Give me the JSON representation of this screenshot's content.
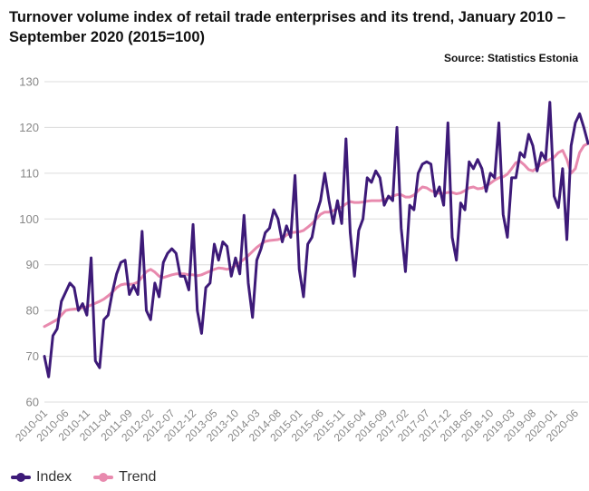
{
  "title": "Turnover volume index of retail trade enterprises and its trend, January 2010 – September 2020 (2015=100)",
  "source": "Source: Statistics Estonia",
  "colors": {
    "index": "#3d1a78",
    "trend": "#e88aae",
    "grid": "#dcdcdc",
    "axis_text": "#888888"
  },
  "chart_data": {
    "type": "line",
    "title": "Turnover volume index of retail trade enterprises and its trend, January 2010 – September 2020 (2015=100)",
    "xlabel": "",
    "ylabel": "",
    "ylim": [
      60,
      130
    ],
    "yticks": [
      60,
      70,
      80,
      90,
      100,
      110,
      120,
      130
    ],
    "grid": true,
    "legend_position": "bottom-left",
    "x_tick_labels": [
      "2010-01",
      "2010-06",
      "2010-11",
      "2011-04",
      "2011-09",
      "2012-02",
      "2012-07",
      "2012-12",
      "2013-05",
      "2013-10",
      "2014-03",
      "2014-08",
      "2015-01",
      "2015-06",
      "2015-11",
      "2016-04",
      "2016-09",
      "2017-02",
      "2017-07",
      "2017-12",
      "2018-05",
      "2018-10",
      "2019-03",
      "2019-08",
      "2020-01",
      "2020-06"
    ],
    "start": "2010-01",
    "end": "2020-09",
    "series": [
      {
        "name": "Index",
        "values": [
          70,
          65.5,
          74.5,
          76,
          82,
          84,
          86,
          85,
          80,
          81.5,
          79,
          91.5,
          69,
          67.5,
          78,
          79,
          84,
          88,
          90.5,
          91,
          83.5,
          85.5,
          83.5,
          97.3,
          80,
          78,
          86,
          83,
          90.5,
          92.5,
          93.5,
          92.5,
          87.5,
          87.5,
          84.5,
          98.8,
          80,
          75,
          85,
          86,
          94.5,
          91,
          95,
          94,
          87.5,
          91.5,
          88,
          100.8,
          86,
          78.5,
          91,
          93.5,
          97,
          98,
          102,
          100,
          95,
          98.5,
          96,
          109.5,
          89,
          83,
          94.5,
          96,
          101,
          104,
          110,
          104,
          99,
          104,
          99,
          117.5,
          97,
          87.5,
          97.5,
          100,
          109,
          108,
          110.5,
          109,
          103,
          105,
          104,
          120,
          98,
          88.5,
          103,
          102,
          110,
          112,
          112.5,
          112,
          105,
          107,
          103,
          121,
          96,
          91,
          103.5,
          102,
          112.5,
          111,
          113,
          111,
          106,
          110,
          109,
          121,
          101,
          96,
          109,
          109,
          114.5,
          113.5,
          118.5,
          116,
          110.5,
          114.5,
          113,
          125.5,
          105,
          102.5,
          111,
          95.5,
          116,
          121,
          123,
          120,
          116.5
        ]
      },
      {
        "name": "Trend",
        "values": [
          76.5,
          77,
          77.5,
          78,
          79,
          80,
          80.2,
          80.3,
          80.4,
          80.6,
          80.8,
          81.2,
          81.6,
          82,
          82.5,
          83.2,
          84,
          85,
          85.6,
          85.8,
          85.7,
          85.8,
          86.2,
          87.3,
          88.5,
          89,
          88.4,
          87.5,
          87.2,
          87.5,
          87.8,
          88,
          88,
          88,
          87.8,
          87.8,
          87.6,
          87.8,
          88.2,
          88.6,
          89,
          89.3,
          89.2,
          89,
          89.3,
          89.8,
          90.5,
          91.2,
          92,
          92.9,
          93.8,
          94.5,
          95.1,
          95.3,
          95.4,
          95.5,
          95.8,
          96.5,
          97,
          97.1,
          97.2,
          97.5,
          98.2,
          99,
          100,
          101,
          101.5,
          101.5,
          101.8,
          102.3,
          102.6,
          103.3,
          103.8,
          103.6,
          103.6,
          103.7,
          103.9,
          104,
          104,
          104,
          104.2,
          104.6,
          105,
          105.3,
          105.3,
          104.8,
          104.8,
          105.2,
          106.2,
          107,
          106.8,
          106.2,
          105.8,
          105.6,
          105.6,
          105.8,
          105.8,
          105.5,
          105.7,
          106.2,
          106.8,
          107,
          106.6,
          106.7,
          107.2,
          107.8,
          108.5,
          109,
          109.2,
          109.8,
          111,
          112.3,
          112.6,
          111.8,
          110.8,
          110.5,
          111.2,
          112,
          112.5,
          113,
          113.5,
          114.5,
          115,
          113,
          110,
          111,
          114.5,
          116,
          116.5
        ]
      }
    ]
  }
}
